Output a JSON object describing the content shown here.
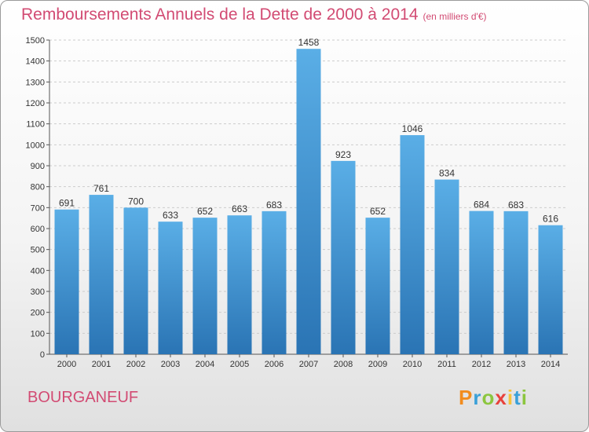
{
  "title": "Remboursements Annuels de la Dette de 2000 à 2014",
  "subtitle": "(en milliers d'€)",
  "commune": "BOURGANEUF",
  "logo": {
    "letters": [
      "P",
      "r",
      "o",
      "x",
      "i",
      "t",
      "i"
    ],
    "colors": [
      "#f28c1e",
      "#3aa0d8",
      "#8cc63f",
      "#e8413b",
      "#f6c33a",
      "#3aa0d8",
      "#8cc63f"
    ]
  },
  "colors": {
    "title": "#d24b73",
    "bar_top": "#5aaee6",
    "bar_bottom": "#2a74b4",
    "grid": "#cccccc"
  },
  "chart_data": {
    "type": "bar",
    "title": "Remboursements Annuels de la Dette de 2000 à 2014",
    "subtitle": "(en milliers d'€)",
    "categories": [
      "2000",
      "2001",
      "2002",
      "2003",
      "2004",
      "2005",
      "2006",
      "2007",
      "2008",
      "2009",
      "2010",
      "2011",
      "2012",
      "2013",
      "2014"
    ],
    "values": [
      691,
      761,
      700,
      633,
      652,
      663,
      683,
      1458,
      923,
      652,
      1046,
      834,
      684,
      683,
      616
    ],
    "ylim": [
      0,
      1500
    ],
    "yticks": [
      0,
      100,
      200,
      300,
      400,
      500,
      600,
      700,
      800,
      900,
      1000,
      1100,
      1200,
      1300,
      1400,
      1500
    ],
    "grid": "horizontal dashed"
  }
}
